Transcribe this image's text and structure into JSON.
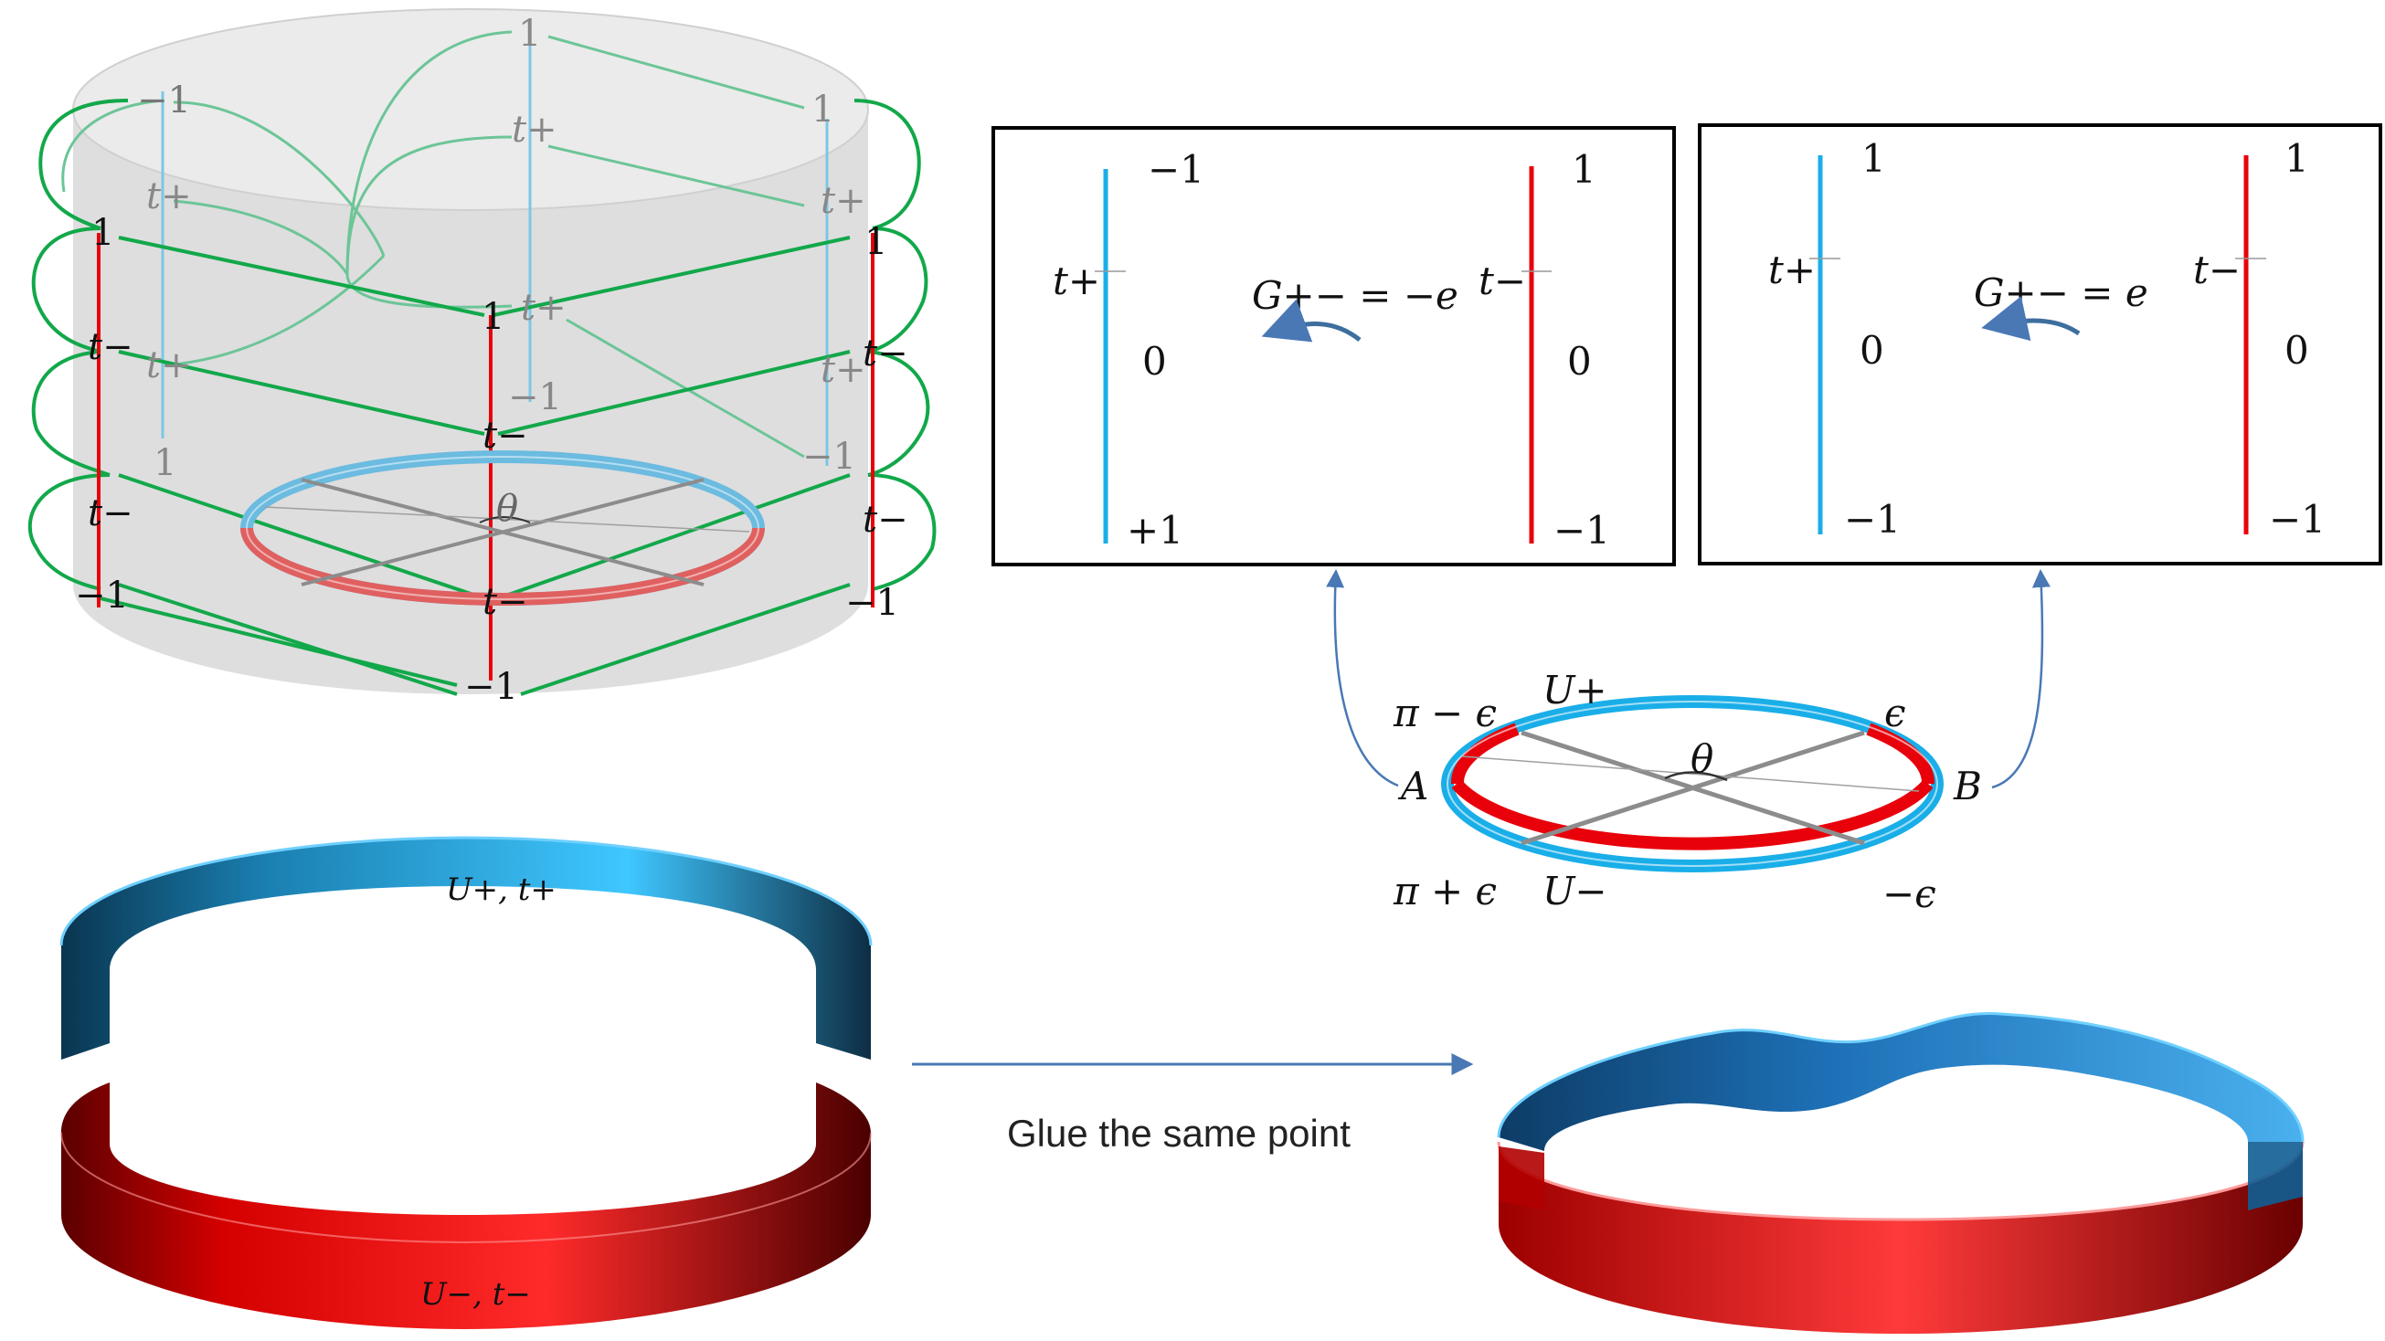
{
  "colors": {
    "blue": "#1aaee8",
    "red": "#e8000b",
    "green": "#12a84a",
    "light_green": "#5fc28a",
    "gray": "#8c8c8c",
    "cylinder": "#dcdcdc",
    "arrow": "#4a78b5"
  },
  "cylinder": {
    "theta": "θ",
    "blue_left": {
      "top": "−1",
      "t": "t+",
      "bottom": "1"
    },
    "blue_right": {
      "top": "1",
      "t": "t+",
      "bottom": "−1"
    },
    "blue_center": {
      "top": "1",
      "t1": "t+",
      "t2": "t+",
      "bottom": "−1"
    },
    "red_left": {
      "top": "1",
      "t1": "t−",
      "t2": "t−",
      "bottom": "−1"
    },
    "red_right": {
      "top": "1",
      "t1": "t−",
      "t2": "t−",
      "bottom": "−1"
    },
    "red_center": {
      "top": "1",
      "t1": "t−",
      "t2": "t−",
      "bottom": "−1"
    },
    "left_t_plus_2": "t+"
  },
  "panel_left": {
    "blue_top": "−1",
    "blue_mid": "0",
    "blue_bottom": "+1",
    "blue_t": "t+",
    "red_top": "1",
    "red_mid": "0",
    "red_bottom": "−1",
    "red_t": "t−",
    "g_label": "G+− = −e"
  },
  "panel_right": {
    "blue_top": "1",
    "blue_mid": "0",
    "blue_bottom": "−1",
    "blue_t": "t+",
    "red_top": "1",
    "red_mid": "0",
    "red_bottom": "−1",
    "red_t": "t−",
    "g_label": "G+− = e"
  },
  "small_ring": {
    "u_plus": "U+",
    "u_minus": "U−",
    "pi_minus_eps": "π − ϵ",
    "pi_plus_eps": "π + ϵ",
    "eps": "ϵ",
    "minus_eps": "−ϵ",
    "a": "A",
    "b": "B",
    "theta": "θ"
  },
  "bands": {
    "blue_label": "U+, t+",
    "red_label": "U−, t−",
    "glue_text": "Glue the same point"
  }
}
